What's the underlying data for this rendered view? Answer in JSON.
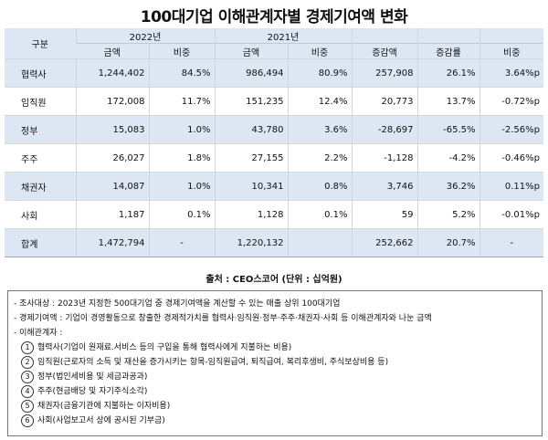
{
  "title": "100대기업 이해관계자별 경제기여액 변화",
  "table": {
    "header_gu": "구분",
    "year_2022": "2022년",
    "year_2021": "2021년",
    "col_amount_2022": "금액",
    "col_ratio_2022": "비중",
    "col_amount_2021": "금액",
    "col_ratio_2021": "비중",
    "col_change_amount": "증감액",
    "col_change_rate": "증감률",
    "col_ratio_change": "비중",
    "rows": [
      {
        "label": "협력사",
        "a2022": "1,244,402",
        "r2022": "84.5%",
        "a2021": "986,494",
        "r2021": "80.9%",
        "diff": "257,908",
        "rate": "26.1%",
        "pp": "3.64%p"
      },
      {
        "label": "임직원",
        "a2022": "172,008",
        "r2022": "11.7%",
        "a2021": "151,235",
        "r2021": "12.4%",
        "diff": "20,773",
        "rate": "13.7%",
        "pp": "-0.72%p"
      },
      {
        "label": "정부",
        "a2022": "15,083",
        "r2022": "1.0%",
        "a2021": "43,780",
        "r2021": "3.6%",
        "diff": "-28,697",
        "rate": "-65.5%",
        "pp": "-2.56%p"
      },
      {
        "label": "주주",
        "a2022": "26,027",
        "r2022": "1.8%",
        "a2021": "27,155",
        "r2021": "2.2%",
        "diff": "-1,128",
        "rate": "-4.2%",
        "pp": "-0.46%p"
      },
      {
        "label": "채권자",
        "a2022": "14,087",
        "r2022": "1.0%",
        "a2021": "10,341",
        "r2021": "0.8%",
        "diff": "3,746",
        "rate": "36.2%",
        "pp": "0.11%p"
      },
      {
        "label": "사회",
        "a2022": "1,187",
        "r2022": "0.1%",
        "a2021": "1,128",
        "r2021": "0.1%",
        "diff": "59",
        "rate": "5.2%",
        "pp": "-0.01%p"
      }
    ],
    "total": {
      "label": "합계",
      "a2022": "1,472,794",
      "r2022": "-",
      "a2021": "1,220,132",
      "r2021": "",
      "diff": "252,662",
      "rate": "20.7%",
      "pp": "-"
    }
  },
  "source": "출처 : CEO스코어 (단위 : 십억원)",
  "notes": {
    "survey": "- 조사대상 : 2023년 지정한 500대기업 중 경제기여액을 계산할 수 있는 매출 상위 100대기업",
    "definition": "- 경제기여액 : 기업이 경영활동으로 창출한 경제적가치를 협력사·임직원·정부·주주·채권자·사회 등 이해관계자와 나눈 금액",
    "stakeholders": "- 이해관계자 :",
    "items": [
      {
        "num": "1",
        "text": "협력사(기업이 원재료.서비스 등의 구입을 통해 협력사에게 지불하는 비용)"
      },
      {
        "num": "2",
        "text": "임직원(근로자의 소득 및 재산을 증가시키는 항목-임직원급여, 퇴직급여, 복리후생비, 주식보상비용 등)"
      },
      {
        "num": "3",
        "text": "정부(법인세비용 및 세금과공과)"
      },
      {
        "num": "4",
        "text": "주주(현금배당 및 자기주식소각)"
      },
      {
        "num": "5",
        "text": "채권자(금융기관에 지불하는 이자비용)"
      },
      {
        "num": "6",
        "text": "사회(사업보고서 상에 공시된 기부금)"
      }
    ]
  }
}
